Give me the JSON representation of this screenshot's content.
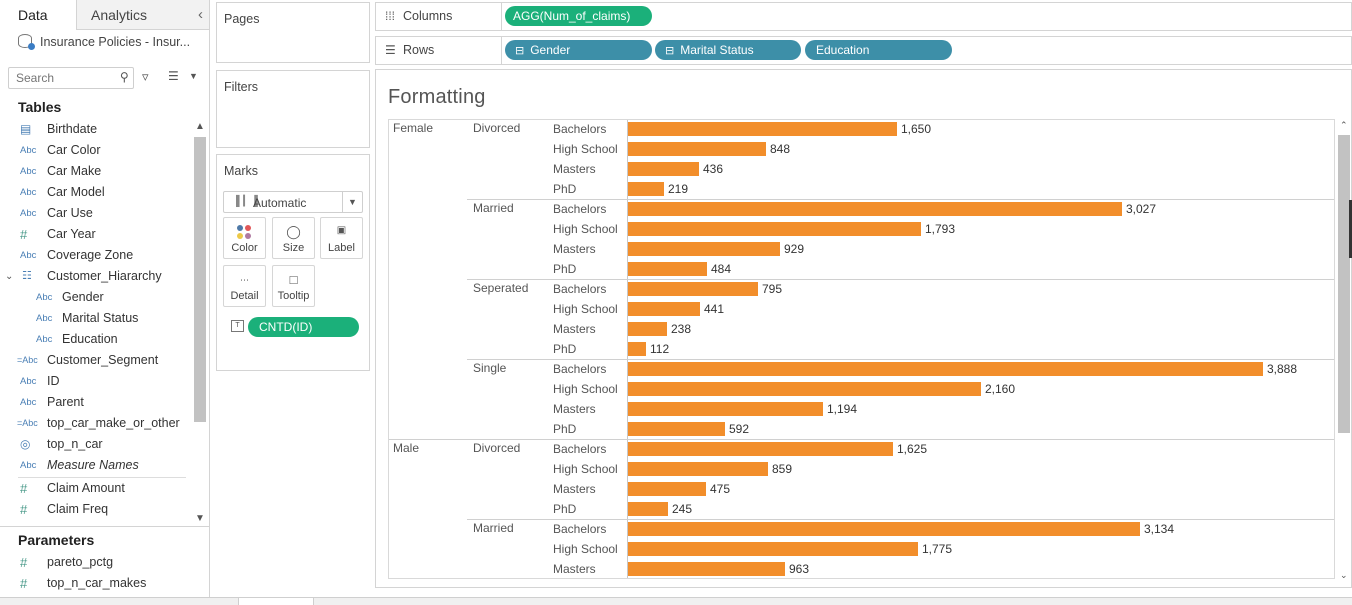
{
  "data_pane": {
    "tab_data": "Data",
    "tab_analytics": "Analytics",
    "collapse_icon": "chevron-left-icon",
    "datasource": "Insurance Policies - Insur...",
    "search_placeholder": "Search",
    "tables_title": "Tables",
    "fields": [
      {
        "type": "date",
        "icon": "calendar-icon",
        "name": "Birthdate"
      },
      {
        "type": "string",
        "icon": "abc-icon",
        "name": "Car Color"
      },
      {
        "type": "string",
        "icon": "abc-icon",
        "name": "Car Make"
      },
      {
        "type": "string",
        "icon": "abc-icon",
        "name": "Car Model"
      },
      {
        "type": "string",
        "icon": "abc-icon",
        "name": "Car Use"
      },
      {
        "type": "number",
        "icon": "hash-icon",
        "name": "Car Year"
      },
      {
        "type": "string",
        "icon": "abc-icon",
        "name": "Coverage Zone"
      },
      {
        "type": "hierarchy",
        "icon": "hierarchy-icon",
        "name": "Customer_Hiararchy"
      },
      {
        "type": "string",
        "icon": "abc-icon",
        "name": "Gender"
      },
      {
        "type": "string",
        "icon": "abc-icon",
        "name": "Marital Status"
      },
      {
        "type": "string",
        "icon": "abc-icon",
        "name": "Education"
      },
      {
        "type": "calc-string",
        "icon": "calc-abc-icon",
        "name": "Customer_Segment"
      },
      {
        "type": "string",
        "icon": "abc-icon",
        "name": "ID"
      },
      {
        "type": "string",
        "icon": "abc-icon",
        "name": "Parent"
      },
      {
        "type": "calc-string",
        "icon": "calc-abc-icon",
        "name": "top_car_make_or_other"
      },
      {
        "type": "set",
        "icon": "set-icon",
        "name": "top_n_car"
      },
      {
        "type": "string",
        "icon": "abc-icon",
        "name": "Measure Names"
      },
      {
        "type": "number",
        "icon": "hash-icon",
        "name": "Claim Amount"
      },
      {
        "type": "number",
        "icon": "hash-icon",
        "name": "Claim Freq"
      }
    ],
    "parameters_title": "Parameters",
    "parameters": [
      {
        "icon": "hash-icon",
        "name": "pareto_pctg"
      },
      {
        "icon": "hash-icon",
        "name": "top_n_car_makes"
      }
    ]
  },
  "cards": {
    "pages_title": "Pages",
    "filters_title": "Filters",
    "marks_title": "Marks",
    "mark_type": "Automatic",
    "buttons": [
      {
        "label": "Color",
        "icon": "color-icon"
      },
      {
        "label": "Size",
        "icon": "size-icon"
      },
      {
        "label": "Label",
        "icon": "label-icon"
      },
      {
        "label": "Detail",
        "icon": "detail-icon"
      },
      {
        "label": "Tooltip",
        "icon": "tooltip-icon"
      }
    ],
    "marks_pill": "CNTD(ID)"
  },
  "shelves": {
    "columns_label": "Columns",
    "rows_label": "Rows",
    "columns_pills": [
      "AGG(Num_of_claims)"
    ],
    "rows_pills": [
      "Gender",
      "Marital Status",
      "Education"
    ]
  },
  "view": {
    "title": "Formatting"
  },
  "colors": {
    "bar": "#f28e2b",
    "measure_pill": "#1bb07a",
    "dimension_pill": "#3d8fa8"
  },
  "chart_data": {
    "type": "bar",
    "orientation": "horizontal",
    "title": "Formatting",
    "xlabel": "",
    "ylabel": "",
    "xlim": [
      0,
      4000
    ],
    "rows": [
      {
        "gender": "Female",
        "marital": "Divorced",
        "education": "Bachelors",
        "value": 1650,
        "label": "1,650"
      },
      {
        "gender": "",
        "marital": "",
        "education": "High School",
        "value": 848,
        "label": "848"
      },
      {
        "gender": "",
        "marital": "",
        "education": "Masters",
        "value": 436,
        "label": "436"
      },
      {
        "gender": "",
        "marital": "",
        "education": "PhD",
        "value": 219,
        "label": "219"
      },
      {
        "gender": "",
        "marital": "Married",
        "education": "Bachelors",
        "value": 3027,
        "label": "3,027"
      },
      {
        "gender": "",
        "marital": "",
        "education": "High School",
        "value": 1793,
        "label": "1,793"
      },
      {
        "gender": "",
        "marital": "",
        "education": "Masters",
        "value": 929,
        "label": "929"
      },
      {
        "gender": "",
        "marital": "",
        "education": "PhD",
        "value": 484,
        "label": "484"
      },
      {
        "gender": "",
        "marital": "Seperated",
        "education": "Bachelors",
        "value": 795,
        "label": "795"
      },
      {
        "gender": "",
        "marital": "",
        "education": "High School",
        "value": 441,
        "label": "441"
      },
      {
        "gender": "",
        "marital": "",
        "education": "Masters",
        "value": 238,
        "label": "238"
      },
      {
        "gender": "",
        "marital": "",
        "education": "PhD",
        "value": 112,
        "label": "112"
      },
      {
        "gender": "",
        "marital": "Single",
        "education": "Bachelors",
        "value": 3888,
        "label": "3,888"
      },
      {
        "gender": "",
        "marital": "",
        "education": "High School",
        "value": 2160,
        "label": "2,160"
      },
      {
        "gender": "",
        "marital": "",
        "education": "Masters",
        "value": 1194,
        "label": "1,194"
      },
      {
        "gender": "",
        "marital": "",
        "education": "PhD",
        "value": 592,
        "label": "592"
      },
      {
        "gender": "Male",
        "marital": "Divorced",
        "education": "Bachelors",
        "value": 1625,
        "label": "1,625"
      },
      {
        "gender": "",
        "marital": "",
        "education": "High School",
        "value": 859,
        "label": "859"
      },
      {
        "gender": "",
        "marital": "",
        "education": "Masters",
        "value": 475,
        "label": "475"
      },
      {
        "gender": "",
        "marital": "",
        "education": "PhD",
        "value": 245,
        "label": "245"
      },
      {
        "gender": "",
        "marital": "Married",
        "education": "Bachelors",
        "value": 3134,
        "label": "3,134"
      },
      {
        "gender": "",
        "marital": "",
        "education": "High School",
        "value": 1775,
        "label": "1,775"
      },
      {
        "gender": "",
        "marital": "",
        "education": "Masters",
        "value": 963,
        "label": "963"
      }
    ]
  }
}
